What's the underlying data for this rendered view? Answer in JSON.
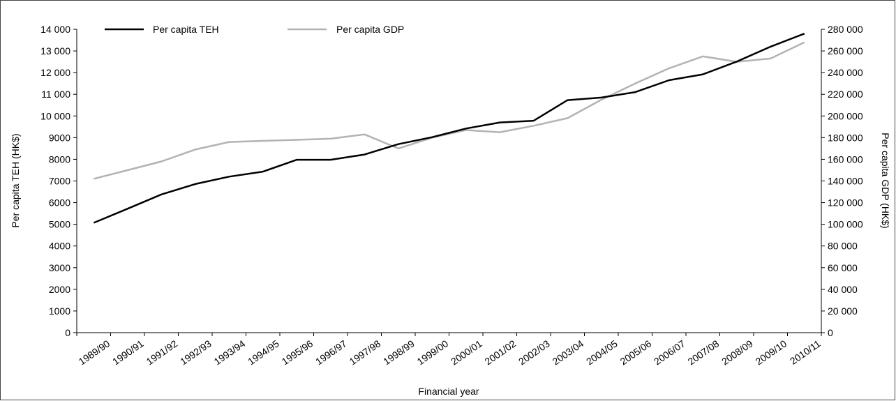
{
  "chart_data": {
    "type": "line",
    "xlabel": "Financial year",
    "ylabel_left": "Per capita TEH (HK$)",
    "ylabel_right": "Per capita GDP (HK$)",
    "categories": [
      "1989/90",
      "1990/91",
      "1991/92",
      "1992/93",
      "1993/94",
      "1994/95",
      "1995/96",
      "1996/97",
      "1997/98",
      "1998/99",
      "1999/00",
      "2000/01",
      "2001/02",
      "2002/03",
      "2003/04",
      "2004/05",
      "2005/06",
      "2006/07",
      "2007/08",
      "2008/09",
      "2009/10",
      "2010/11"
    ],
    "ylim_left": [
      0,
      14000
    ],
    "ylim_right": [
      0,
      280000
    ],
    "yticks_left": [
      0,
      1000,
      2000,
      3000,
      4000,
      5000,
      6000,
      7000,
      8000,
      9000,
      10000,
      11000,
      12000,
      13000,
      14000
    ],
    "yticks_left_labels": [
      "0",
      "1000",
      "2000",
      "3000",
      "4000",
      "5000",
      "6000",
      "7000",
      "8000",
      "9000",
      "10 000",
      "11 000",
      "12 000",
      "13 000",
      "14 000"
    ],
    "yticks_right": [
      0,
      20000,
      40000,
      60000,
      80000,
      100000,
      120000,
      140000,
      160000,
      180000,
      200000,
      220000,
      240000,
      260000,
      280000
    ],
    "yticks_right_labels": [
      "0",
      "20 000",
      "40 000",
      "60 000",
      "80 000",
      "100 000",
      "120 000",
      "140 000",
      "160 000",
      "180 000",
      "200 000",
      "220 000",
      "240 000",
      "260 000",
      "280 000"
    ],
    "grid": false,
    "legend_position": "top-left",
    "series": [
      {
        "name": "Per capita TEH",
        "axis": "left",
        "color": "#000000",
        "values": [
          5070,
          5720,
          6380,
          6860,
          7200,
          7430,
          7980,
          7980,
          8220,
          8700,
          9020,
          9420,
          9700,
          9780,
          10730,
          10850,
          11100,
          11650,
          11920,
          12510,
          13200,
          13800
        ]
      },
      {
        "name": "Per capita GDP",
        "axis": "right",
        "color": "#b3b3b3",
        "values": [
          142000,
          150000,
          158000,
          169000,
          176000,
          177000,
          178000,
          179000,
          183000,
          170000,
          180000,
          187000,
          185000,
          191000,
          198000,
          215000,
          230000,
          244000,
          255000,
          250000,
          253000,
          268000
        ]
      }
    ]
  }
}
